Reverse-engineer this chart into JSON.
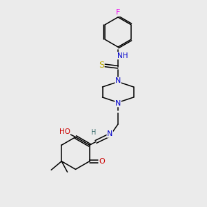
{
  "bg_color": "#ebebeb",
  "atom_colors": {
    "C": "#000000",
    "N": "#0000cc",
    "O": "#cc0000",
    "S": "#bbaa00",
    "F": "#ee00ee",
    "H": "#336666"
  },
  "bond_color": "#000000",
  "font_size": 7.5
}
